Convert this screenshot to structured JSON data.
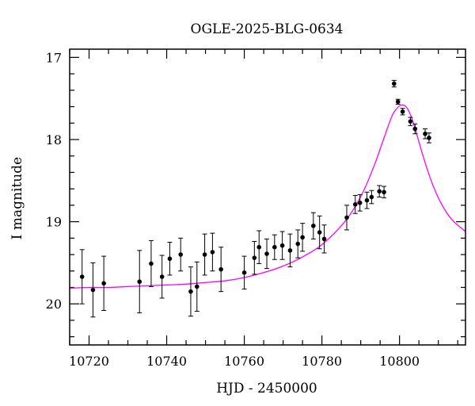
{
  "chart_data": {
    "type": "scatter",
    "title": "OGLE-2025-BLG-0634",
    "xlabel": "HJD - 2450000",
    "ylabel": "I magnitude",
    "xlim": [
      10715,
      10817
    ],
    "ylim": [
      20.5,
      16.9
    ],
    "y_inverted": true,
    "x_ticks": [
      10720,
      10740,
      10760,
      10780,
      10800
    ],
    "x_tick_labels": [
      "10720",
      "10740",
      "10760",
      "10780",
      "10800"
    ],
    "y_ticks": [
      17,
      18,
      19,
      20
    ],
    "y_tick_labels": [
      "17",
      "18",
      "19",
      "20"
    ],
    "grid": false,
    "legend": "none",
    "colors": {
      "points": "#000000",
      "model": "#ff00ff"
    },
    "series": [
      {
        "kind": "points_with_errorbars",
        "points": [
          {
            "x": 10718.2,
            "y": 19.67,
            "err": 0.33
          },
          {
            "x": 10721.0,
            "y": 19.83,
            "err": 0.33
          },
          {
            "x": 10723.8,
            "y": 19.75,
            "err": 0.33
          },
          {
            "x": 10733.0,
            "y": 19.73,
            "err": 0.38
          },
          {
            "x": 10736.0,
            "y": 19.51,
            "err": 0.28
          },
          {
            "x": 10738.8,
            "y": 19.67,
            "err": 0.26
          },
          {
            "x": 10740.8,
            "y": 19.45,
            "err": 0.2
          },
          {
            "x": 10743.6,
            "y": 19.4,
            "err": 0.2
          },
          {
            "x": 10746.2,
            "y": 19.85,
            "err": 0.3
          },
          {
            "x": 10747.8,
            "y": 19.79,
            "err": 0.3
          },
          {
            "x": 10749.8,
            "y": 19.4,
            "err": 0.25
          },
          {
            "x": 10751.8,
            "y": 19.37,
            "err": 0.23
          },
          {
            "x": 10754.0,
            "y": 19.58,
            "err": 0.27
          },
          {
            "x": 10760.0,
            "y": 19.62,
            "err": 0.2
          },
          {
            "x": 10762.6,
            "y": 19.44,
            "err": 0.2
          },
          {
            "x": 10763.8,
            "y": 19.31,
            "err": 0.2
          },
          {
            "x": 10765.8,
            "y": 19.39,
            "err": 0.18
          },
          {
            "x": 10767.8,
            "y": 19.31,
            "err": 0.15
          },
          {
            "x": 10769.8,
            "y": 19.29,
            "err": 0.17
          },
          {
            "x": 10771.8,
            "y": 19.35,
            "err": 0.2
          },
          {
            "x": 10773.8,
            "y": 19.27,
            "err": 0.17
          },
          {
            "x": 10775.0,
            "y": 19.19,
            "err": 0.17
          },
          {
            "x": 10777.8,
            "y": 19.05,
            "err": 0.16
          },
          {
            "x": 10779.4,
            "y": 19.13,
            "err": 0.2
          },
          {
            "x": 10780.6,
            "y": 19.21,
            "err": 0.17
          },
          {
            "x": 10786.4,
            "y": 18.95,
            "err": 0.15
          },
          {
            "x": 10788.6,
            "y": 18.79,
            "err": 0.11
          },
          {
            "x": 10789.8,
            "y": 18.77,
            "err": 0.1
          },
          {
            "x": 10791.6,
            "y": 18.74,
            "err": 0.1
          },
          {
            "x": 10792.8,
            "y": 18.7,
            "err": 0.08
          },
          {
            "x": 10794.8,
            "y": 18.63,
            "err": 0.07
          },
          {
            "x": 10796.0,
            "y": 18.64,
            "err": 0.07
          },
          {
            "x": 10798.6,
            "y": 17.32,
            "err": 0.04
          },
          {
            "x": 10799.6,
            "y": 17.54,
            "err": 0.03
          },
          {
            "x": 10800.8,
            "y": 17.66,
            "err": 0.04
          },
          {
            "x": 10802.8,
            "y": 17.78,
            "err": 0.05
          },
          {
            "x": 10804.0,
            "y": 17.87,
            "err": 0.06
          },
          {
            "x": 10806.6,
            "y": 17.93,
            "err": 0.06
          },
          {
            "x": 10807.6,
            "y": 17.98,
            "err": 0.06
          }
        ]
      },
      {
        "kind": "model_curve",
        "x": [
          10715,
          10720,
          10725,
          10730,
          10735,
          10740,
          10745,
          10750,
          10755,
          10760,
          10765,
          10770,
          10775,
          10780,
          10785,
          10788,
          10791,
          10794,
          10796,
          10798,
          10799,
          10800,
          10801,
          10802,
          10803,
          10804,
          10806,
          10808,
          10810,
          10812,
          10814,
          10817
        ],
        "y": [
          19.81,
          19.8,
          19.8,
          19.79,
          19.78,
          19.77,
          19.76,
          19.74,
          19.72,
          19.68,
          19.62,
          19.54,
          19.43,
          19.28,
          19.05,
          18.86,
          18.6,
          18.25,
          17.98,
          17.72,
          17.64,
          17.59,
          17.58,
          17.62,
          17.72,
          17.86,
          18.19,
          18.48,
          18.71,
          18.88,
          19.0,
          19.12
        ]
      }
    ]
  }
}
